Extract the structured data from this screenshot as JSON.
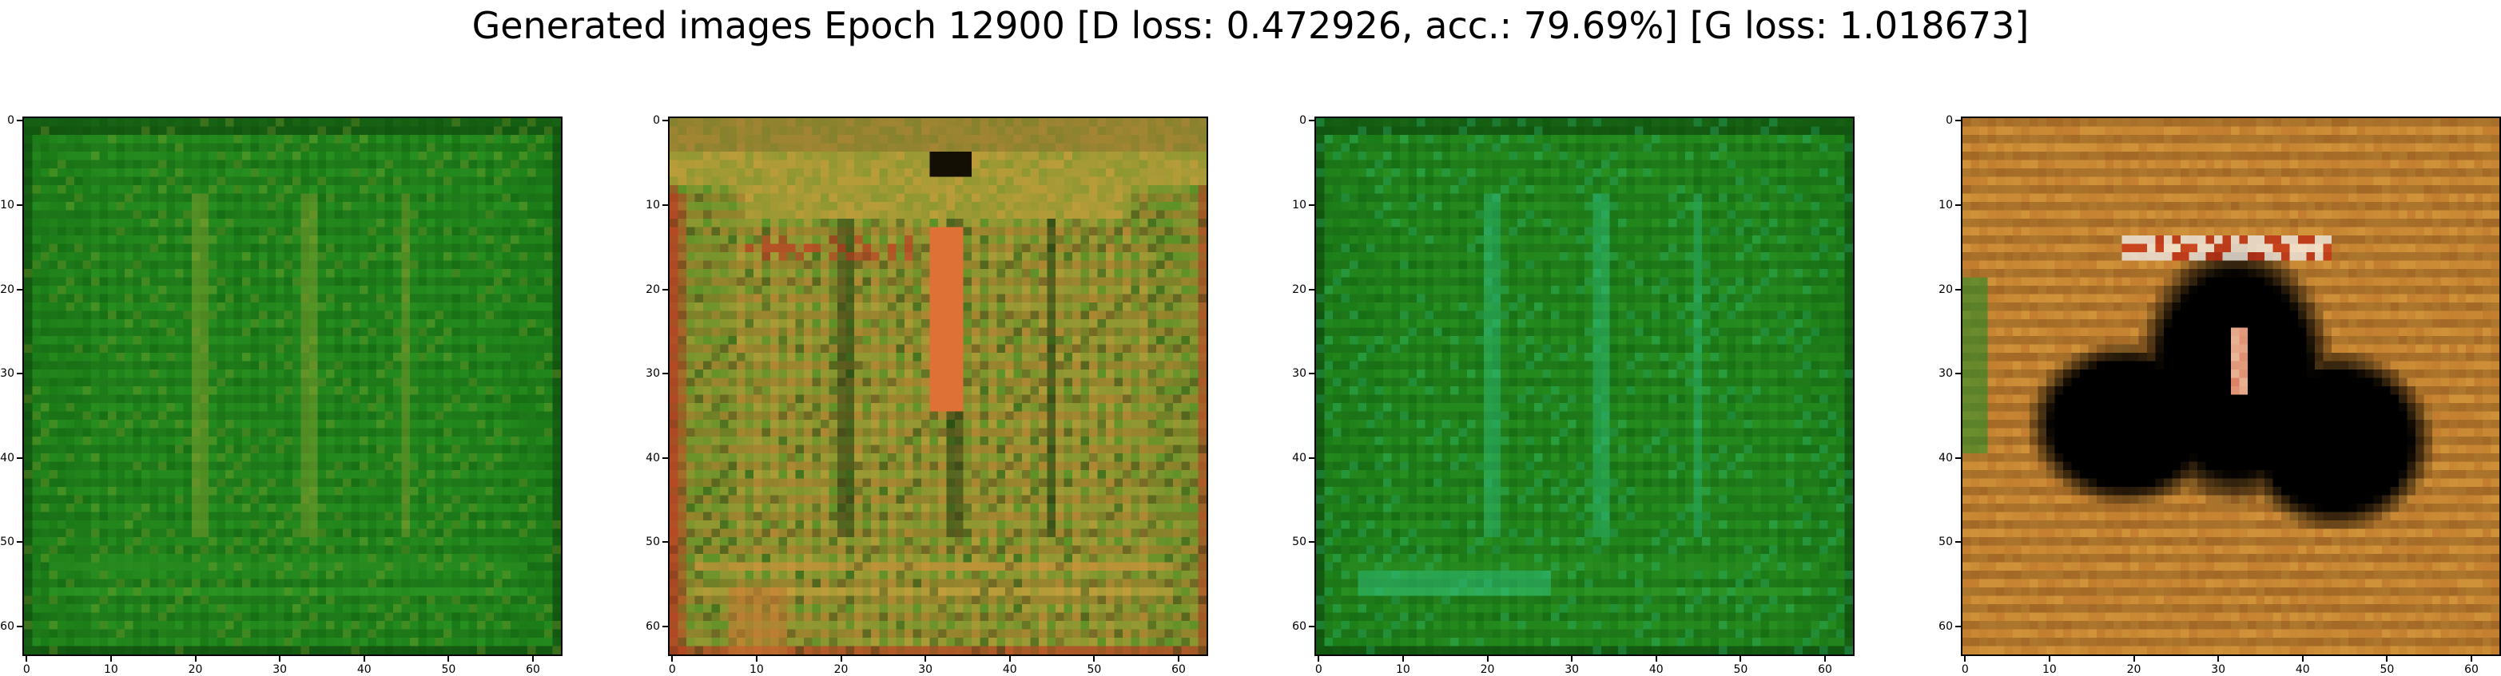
{
  "title": "Generated images Epoch 12900 [D loss: 0.472926, acc.: 79.69%] [G loss: 1.018673]",
  "chart_data": [
    {
      "type": "image",
      "x_ticks": [
        0,
        10,
        20,
        30,
        40,
        50,
        60
      ],
      "y_ticks": [
        0,
        10,
        20,
        30,
        40,
        50,
        60
      ],
      "xlim": [
        -0.5,
        63.5
      ],
      "ylim": [
        63.5,
        -0.5
      ],
      "pixels": [
        64,
        64
      ],
      "dominant_colors": [
        "#0f6a10",
        "#2f9a25",
        "#0a3a0a",
        "#8fa030"
      ],
      "style": "green-stripes"
    },
    {
      "type": "image",
      "x_ticks": [
        0,
        10,
        20,
        30,
        40,
        50,
        60
      ],
      "y_ticks": [
        0,
        10,
        20,
        30,
        40,
        50,
        60
      ],
      "xlim": [
        -0.5,
        63.5
      ],
      "ylim": [
        63.5,
        -0.5
      ],
      "pixels": [
        64,
        64
      ],
      "dominant_colors": [
        "#1a8a1a",
        "#d8a040",
        "#c03020",
        "#0a2a0a"
      ],
      "style": "green-orange-top"
    },
    {
      "type": "image",
      "x_ticks": [
        0,
        10,
        20,
        30,
        40,
        50,
        60
      ],
      "y_ticks": [
        0,
        10,
        20,
        30,
        40,
        50,
        60
      ],
      "xlim": [
        -0.5,
        63.5
      ],
      "ylim": [
        63.5,
        -0.5
      ],
      "pixels": [
        64,
        64
      ],
      "dominant_colors": [
        "#0f6a10",
        "#2f9a25",
        "#0a3a0a",
        "#30c080"
      ],
      "style": "green-stripes"
    },
    {
      "type": "image",
      "x_ticks": [
        0,
        10,
        20,
        30,
        40,
        50,
        60
      ],
      "y_ticks": [
        0,
        10,
        20,
        30,
        40,
        50,
        60
      ],
      "xlim": [
        -0.5,
        63.5
      ],
      "ylim": [
        63.5,
        -0.5
      ],
      "pixels": [
        64,
        64
      ],
      "dominant_colors": [
        "#d8a040",
        "#000000",
        "#b06020",
        "#ffffff"
      ],
      "style": "orange-dark-blob"
    }
  ]
}
